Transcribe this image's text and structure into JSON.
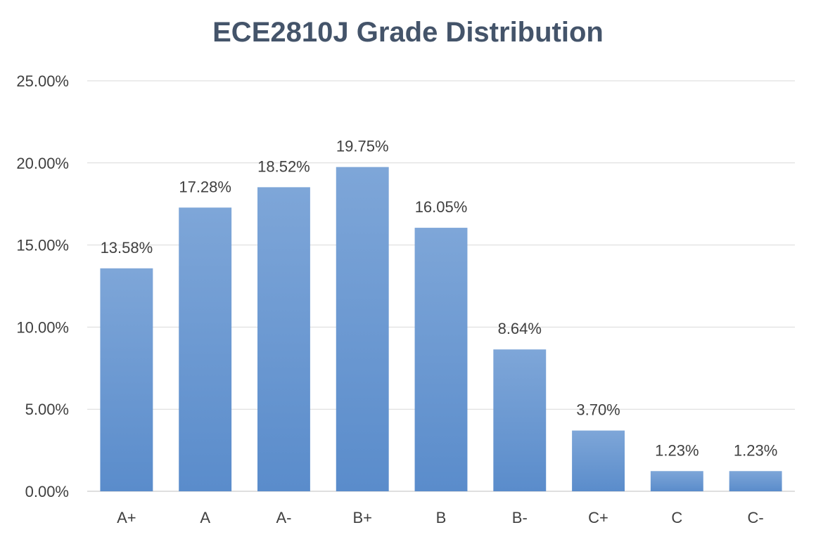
{
  "chart_data": {
    "type": "bar",
    "title": "ECE2810J Grade Distribution",
    "categories": [
      "A+",
      "A",
      "A-",
      "B+",
      "B",
      "B-",
      "C+",
      "C",
      "C-"
    ],
    "values": [
      13.58,
      17.28,
      18.52,
      19.75,
      16.05,
      8.64,
      3.7,
      1.23,
      1.23
    ],
    "data_labels": [
      "13.58%",
      "17.28%",
      "18.52%",
      "19.75%",
      "16.05%",
      "8.64%",
      "3.70%",
      "1.23%",
      "1.23%"
    ],
    "y_ticks": [
      0,
      5,
      10,
      15,
      20,
      25
    ],
    "y_tick_labels": [
      "0.00%",
      "5.00%",
      "10.00%",
      "15.00%",
      "20.00%",
      "25.00%"
    ],
    "ylim": [
      0,
      25
    ],
    "xlabel": "",
    "ylabel": "",
    "grid": true,
    "legend": "none",
    "bar_color_top": "#7ea6d8",
    "bar_color_bottom": "#5a8ccb"
  }
}
